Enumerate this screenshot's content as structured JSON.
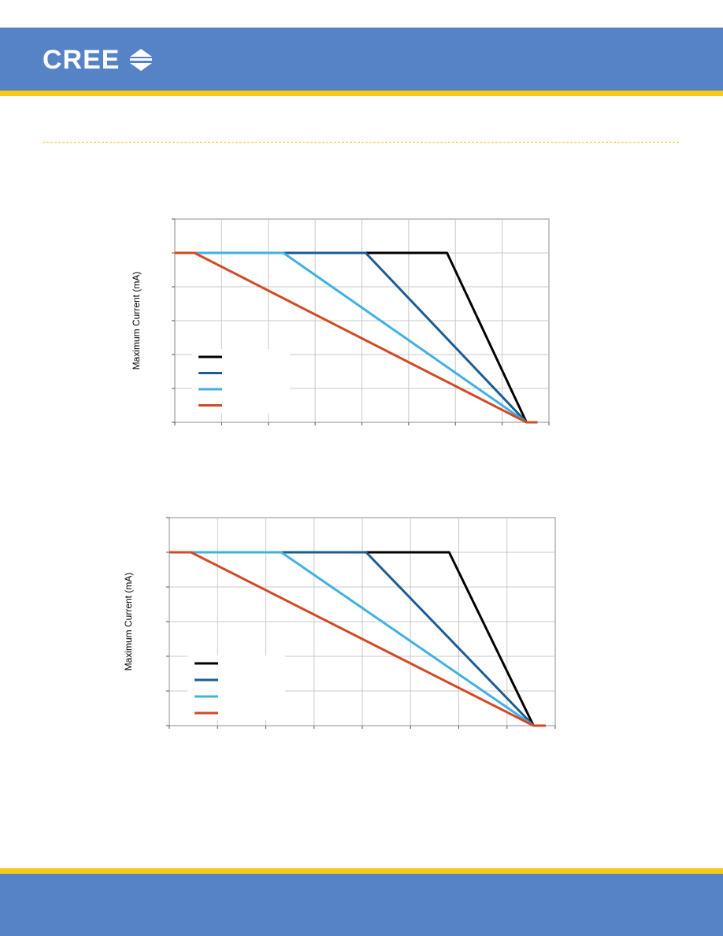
{
  "brand": {
    "name": "CREE",
    "colors": {
      "blue": "#5683c5",
      "yellow": "#f9c917",
      "rule": "#f2c51a"
    },
    "logo_icon": "cree-chevron-icon"
  },
  "chart_data": [
    {
      "type": "line",
      "title": "",
      "xlabel": "",
      "ylabel": "Maximum Current (mA)",
      "xlim": [
        0,
        8
      ],
      "ylim": [
        0,
        6
      ],
      "grid": true,
      "legend_placement": "bottom-left",
      "series": [
        {
          "color": "#000000",
          "x": [
            0,
            5.82,
            7.52,
            7.75
          ],
          "y": [
            5,
            5,
            0,
            0
          ]
        },
        {
          "color": "#1d5b91",
          "x": [
            0,
            4.08,
            7.52,
            7.75
          ],
          "y": [
            5,
            5,
            0,
            0
          ]
        },
        {
          "color": "#41b0e3",
          "x": [
            0,
            2.32,
            7.52,
            7.75
          ],
          "y": [
            5,
            5,
            0,
            0
          ]
        },
        {
          "color": "#d14a23",
          "x": [
            0,
            0.42,
            7.52,
            7.75
          ],
          "y": [
            5,
            5,
            0,
            0
          ]
        }
      ]
    },
    {
      "type": "line",
      "title": "",
      "xlabel": "",
      "ylabel": "Maximum Current (mA)",
      "xlim": [
        0,
        8
      ],
      "ylim": [
        0,
        6
      ],
      "grid": true,
      "legend_placement": "bottom-left",
      "series": [
        {
          "color": "#000000",
          "x": [
            0,
            5.8,
            7.55,
            7.8
          ],
          "y": [
            5,
            5,
            0,
            0
          ]
        },
        {
          "color": "#1d5b91",
          "x": [
            0,
            4.08,
            7.55,
            7.8
          ],
          "y": [
            5,
            5,
            0,
            0
          ]
        },
        {
          "color": "#41b0e3",
          "x": [
            0,
            2.32,
            7.55,
            7.8
          ],
          "y": [
            5,
            5,
            0,
            0
          ]
        },
        {
          "color": "#d14a23",
          "x": [
            0,
            0.45,
            7.55,
            7.8
          ],
          "y": [
            5,
            5,
            0,
            0
          ]
        }
      ]
    }
  ]
}
